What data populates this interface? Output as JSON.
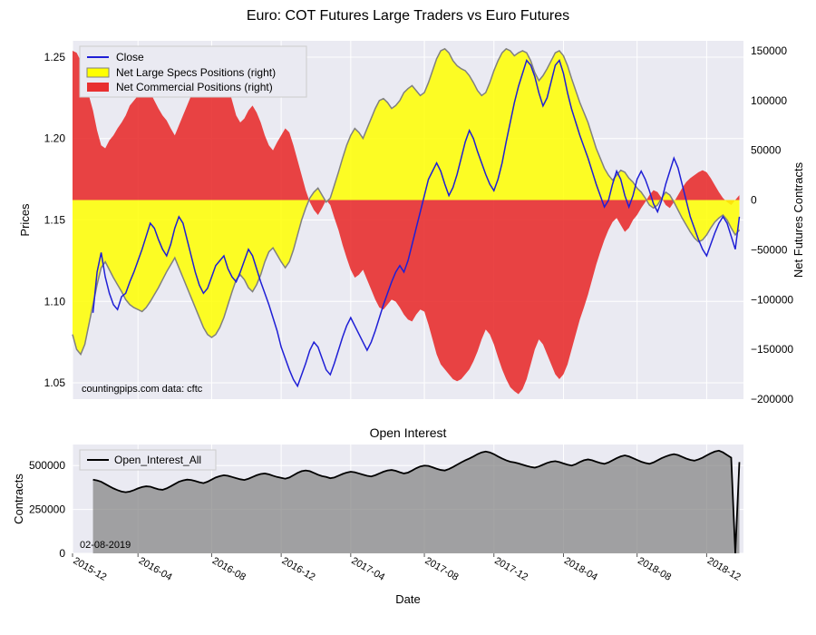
{
  "main": {
    "title": "Euro: COT Futures Large Traders vs Euro Futures",
    "ylabel_left": "Prices",
    "ylabel_right": "Net Futures Contracts",
    "xlabel": "Date",
    "legend": {
      "close": "Close",
      "specs": "Net Large Specs Positions (right)",
      "comm": "Net Commercial Positions (right)"
    },
    "credit": "countingpips.com    data: cftc",
    "yleft": {
      "min": 1.04,
      "max": 1.26,
      "ticks": [
        1.05,
        1.1,
        1.15,
        1.2,
        1.25
      ]
    },
    "yright": {
      "min": -200000,
      "max": 160000,
      "ticks": [
        -200000,
        -150000,
        -100000,
        -50000,
        0,
        50000,
        100000,
        150000
      ]
    },
    "xaxis": {
      "min": 0,
      "max": 164,
      "tick_idx": [
        0,
        16,
        34,
        51,
        68,
        86,
        103,
        120,
        138,
        155
      ],
      "tick_labels": [
        "2015-12",
        "2016-04",
        "2016-08",
        "2016-12",
        "2017-04",
        "2017-08",
        "2017-12",
        "2018-04",
        "2018-08",
        "2018-12"
      ]
    },
    "colors": {
      "close": "#1f1fd6",
      "specs_line": "#808080",
      "specs_fill": "#ffff00",
      "comm_fill": "#e83030",
      "bg": "#eaeaf2",
      "grid": "#ffffff"
    },
    "comm": [
      150000,
      148000,
      140000,
      120000,
      105000,
      90000,
      70000,
      55000,
      52000,
      60000,
      65000,
      72000,
      78000,
      85000,
      95000,
      100000,
      105000,
      110000,
      112000,
      108000,
      100000,
      92000,
      85000,
      80000,
      72000,
      65000,
      75000,
      85000,
      95000,
      105000,
      115000,
      125000,
      135000,
      145000,
      150000,
      148000,
      140000,
      128000,
      115000,
      100000,
      85000,
      78000,
      82000,
      90000,
      95000,
      88000,
      78000,
      65000,
      55000,
      50000,
      58000,
      65000,
      72000,
      68000,
      55000,
      40000,
      25000,
      10000,
      -2000,
      -10000,
      -15000,
      -8000,
      0,
      -5000,
      -18000,
      -30000,
      -45000,
      -58000,
      -70000,
      -78000,
      -75000,
      -70000,
      -80000,
      -90000,
      -100000,
      -108000,
      -110000,
      -105000,
      -100000,
      -102000,
      -108000,
      -115000,
      -120000,
      -122000,
      -115000,
      -110000,
      -112000,
      -125000,
      -140000,
      -155000,
      -165000,
      -170000,
      -175000,
      -180000,
      -182000,
      -180000,
      -175000,
      -170000,
      -162000,
      -152000,
      -140000,
      -130000,
      -135000,
      -145000,
      -158000,
      -170000,
      -180000,
      -188000,
      -192000,
      -195000,
      -190000,
      -180000,
      -165000,
      -150000,
      -140000,
      -145000,
      -155000,
      -165000,
      -175000,
      -180000,
      -175000,
      -165000,
      -150000,
      -135000,
      -120000,
      -108000,
      -95000,
      -80000,
      -65000,
      -52000,
      -40000,
      -30000,
      -22000,
      -18000,
      -25000,
      -32000,
      -28000,
      -20000,
      -15000,
      -8000,
      -2000,
      5000,
      10000,
      8000,
      2000,
      -5000,
      -8000,
      -2000,
      5000,
      12000,
      18000,
      22000,
      25000,
      28000,
      30000,
      28000,
      22000,
      15000,
      8000,
      2000,
      -2000,
      -5000,
      0,
      5000
    ],
    "specs": [
      -135000,
      -150000,
      -155000,
      -145000,
      -125000,
      -105000,
      -85000,
      -68000,
      -62000,
      -70000,
      -78000,
      -85000,
      -92000,
      -100000,
      -105000,
      -108000,
      -110000,
      -112000,
      -108000,
      -102000,
      -95000,
      -88000,
      -80000,
      -72000,
      -65000,
      -58000,
      -68000,
      -78000,
      -88000,
      -98000,
      -108000,
      -118000,
      -128000,
      -135000,
      -138000,
      -135000,
      -128000,
      -118000,
      -105000,
      -92000,
      -80000,
      -75000,
      -80000,
      -88000,
      -92000,
      -85000,
      -75000,
      -62000,
      -52000,
      -48000,
      -55000,
      -62000,
      -68000,
      -62000,
      -50000,
      -35000,
      -20000,
      -8000,
      2000,
      8000,
      12000,
      5000,
      -2000,
      2000,
      15000,
      28000,
      42000,
      55000,
      65000,
      72000,
      68000,
      62000,
      72000,
      82000,
      92000,
      100000,
      102000,
      98000,
      92000,
      95000,
      100000,
      108000,
      112000,
      115000,
      110000,
      105000,
      108000,
      118000,
      130000,
      142000,
      150000,
      152000,
      148000,
      140000,
      135000,
      132000,
      130000,
      125000,
      118000,
      110000,
      105000,
      108000,
      118000,
      130000,
      140000,
      148000,
      152000,
      150000,
      145000,
      148000,
      150000,
      148000,
      140000,
      128000,
      120000,
      125000,
      132000,
      140000,
      148000,
      150000,
      145000,
      135000,
      122000,
      110000,
      98000,
      88000,
      78000,
      65000,
      52000,
      42000,
      32000,
      25000,
      20000,
      25000,
      30000,
      28000,
      22000,
      18000,
      12000,
      8000,
      2000,
      -5000,
      -8000,
      -5000,
      2000,
      8000,
      5000,
      -2000,
      -10000,
      -18000,
      -25000,
      -32000,
      -38000,
      -42000,
      -40000,
      -35000,
      -28000,
      -22000,
      -18000,
      -15000,
      -20000,
      -28000,
      -35000,
      -30000
    ],
    "close": [
      null,
      null,
      null,
      null,
      null,
      1.093,
      1.118,
      1.13,
      1.115,
      1.105,
      1.098,
      1.095,
      1.103,
      1.105,
      1.112,
      1.118,
      1.125,
      1.132,
      1.14,
      1.148,
      1.145,
      1.138,
      1.132,
      1.128,
      1.135,
      1.145,
      1.152,
      1.148,
      1.138,
      1.128,
      1.118,
      1.11,
      1.105,
      1.108,
      1.115,
      1.122,
      1.125,
      1.128,
      1.12,
      1.115,
      1.112,
      1.118,
      1.125,
      1.132,
      1.128,
      1.12,
      1.112,
      1.105,
      1.098,
      1.09,
      1.082,
      1.072,
      1.065,
      1.058,
      1.052,
      1.048,
      1.055,
      1.062,
      1.07,
      1.075,
      1.072,
      1.065,
      1.058,
      1.055,
      1.062,
      1.07,
      1.078,
      1.085,
      1.09,
      1.085,
      1.08,
      1.075,
      1.07,
      1.075,
      1.082,
      1.09,
      1.098,
      1.105,
      1.112,
      1.118,
      1.122,
      1.118,
      1.125,
      1.135,
      1.145,
      1.155,
      1.165,
      1.175,
      1.18,
      1.185,
      1.18,
      1.172,
      1.165,
      1.17,
      1.178,
      1.188,
      1.198,
      1.205,
      1.2,
      1.192,
      1.185,
      1.178,
      1.172,
      1.168,
      1.175,
      1.185,
      1.198,
      1.21,
      1.222,
      1.232,
      1.24,
      1.248,
      1.245,
      1.238,
      1.228,
      1.22,
      1.225,
      1.235,
      1.245,
      1.248,
      1.24,
      1.228,
      1.218,
      1.21,
      1.202,
      1.195,
      1.188,
      1.18,
      1.172,
      1.165,
      1.158,
      1.162,
      1.172,
      1.18,
      1.175,
      1.165,
      1.158,
      1.165,
      1.175,
      1.18,
      1.175,
      1.168,
      1.16,
      1.155,
      1.162,
      1.172,
      1.18,
      1.188,
      1.182,
      1.172,
      1.162,
      1.152,
      1.145,
      1.138,
      1.132,
      1.128,
      1.135,
      1.142,
      1.148,
      1.152,
      1.148,
      1.14,
      1.132,
      1.152
    ]
  },
  "oi": {
    "title": "Open Interest",
    "ylabel": "Contracts",
    "legend": "Open_Interest_All",
    "date_label": "02-08-2019",
    "y": {
      "min": 0,
      "max": 620000,
      "ticks": [
        0,
        250000,
        500000
      ]
    },
    "colors": {
      "line": "#000000",
      "fill": "#808080",
      "bg": "#eaeaf2",
      "grid": "#ffffff"
    },
    "values": [
      null,
      null,
      null,
      null,
      null,
      420000,
      415000,
      408000,
      395000,
      382000,
      370000,
      360000,
      352000,
      348000,
      352000,
      360000,
      370000,
      378000,
      382000,
      380000,
      372000,
      365000,
      362000,
      370000,
      382000,
      395000,
      408000,
      415000,
      420000,
      418000,
      412000,
      405000,
      400000,
      408000,
      420000,
      432000,
      440000,
      445000,
      442000,
      435000,
      428000,
      422000,
      418000,
      425000,
      435000,
      445000,
      452000,
      455000,
      450000,
      442000,
      435000,
      430000,
      425000,
      432000,
      445000,
      458000,
      468000,
      472000,
      468000,
      458000,
      448000,
      440000,
      435000,
      428000,
      432000,
      442000,
      452000,
      460000,
      465000,
      462000,
      455000,
      448000,
      442000,
      438000,
      445000,
      455000,
      465000,
      472000,
      475000,
      470000,
      462000,
      455000,
      460000,
      472000,
      485000,
      495000,
      500000,
      498000,
      490000,
      482000,
      475000,
      472000,
      480000,
      492000,
      505000,
      518000,
      530000,
      540000,
      552000,
      565000,
      575000,
      580000,
      575000,
      565000,
      552000,
      540000,
      530000,
      522000,
      518000,
      512000,
      505000,
      498000,
      492000,
      488000,
      495000,
      505000,
      515000,
      522000,
      525000,
      520000,
      512000,
      505000,
      500000,
      508000,
      520000,
      530000,
      535000,
      530000,
      522000,
      515000,
      510000,
      518000,
      530000,
      542000,
      552000,
      558000,
      552000,
      542000,
      532000,
      522000,
      515000,
      510000,
      518000,
      530000,
      542000,
      552000,
      560000,
      565000,
      560000,
      550000,
      540000,
      532000,
      528000,
      535000,
      545000,
      558000,
      570000,
      580000,
      585000,
      575000,
      560000,
      545000,
      530,
      520000
    ]
  }
}
